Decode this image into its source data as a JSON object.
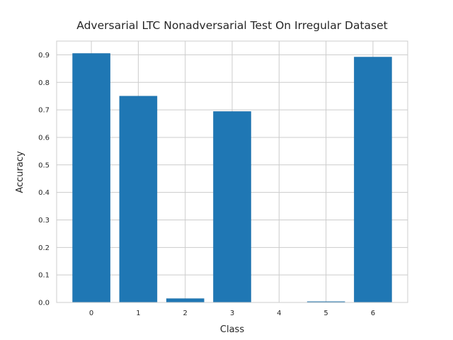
{
  "chart_data": {
    "type": "bar",
    "title": "Adversarial LTC Nonadversarial Test On Irregular Dataset",
    "xlabel": "Class",
    "ylabel": "Accuracy",
    "categories": [
      "0",
      "1",
      "2",
      "3",
      "4",
      "5",
      "6"
    ],
    "values": [
      0.905,
      0.75,
      0.014,
      0.694,
      0.0,
      0.003,
      0.892
    ],
    "ylim": [
      0,
      0.95
    ],
    "yticks": [
      "0.0",
      "0.1",
      "0.2",
      "0.3",
      "0.4",
      "0.5",
      "0.6",
      "0.7",
      "0.8",
      "0.9"
    ],
    "grid": true,
    "bar_color": "#1f77b4"
  }
}
